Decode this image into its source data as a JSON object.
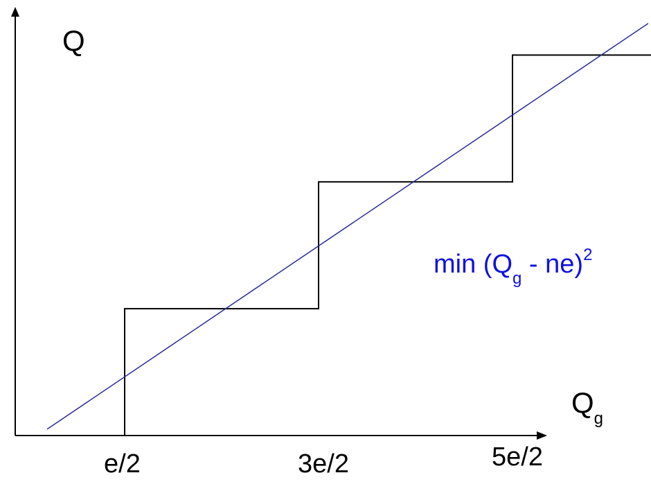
{
  "chart_data": {
    "type": "line",
    "ylabel_main": "Q",
    "xlabel_main": "Q",
    "xlabel_sub": "g",
    "annotation": {
      "prefix": "min (Q",
      "sub": "g",
      "middle": " - ne)",
      "sup": "2",
      "color": "#1010e0"
    },
    "x_ticks": [
      "e/2",
      "3e/2",
      "5e/2"
    ],
    "x_tick_values": [
      0.5,
      1.5,
      2.5
    ],
    "xlim": [
      0.05,
      3.4
    ],
    "ylim": [
      0.0,
      3.5
    ],
    "series": [
      {
        "kind": "staircase",
        "color": "#000000",
        "x": [
          0.5,
          0.5,
          1.5,
          1.5,
          2.5,
          2.5,
          3.35
        ],
        "y": [
          0.0,
          1.0,
          1.0,
          2.0,
          2.0,
          3.0,
          3.0
        ]
      },
      {
        "kind": "linear-fit",
        "color": "#2a2a9a",
        "x": [
          0.1,
          3.2
        ],
        "y": [
          0.05,
          3.25
        ]
      }
    ]
  }
}
